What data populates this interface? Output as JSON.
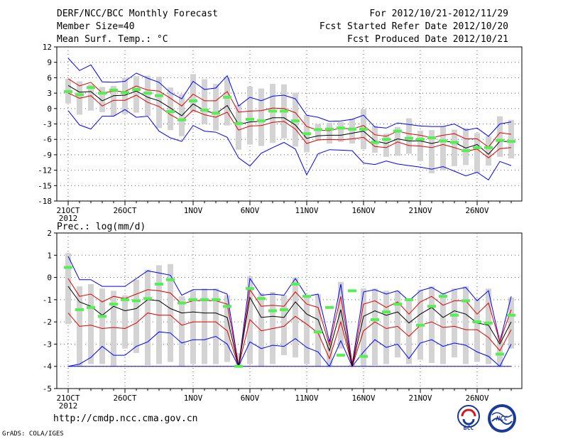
{
  "header": {
    "title": "DERF/NCC/BCC Monthly Forecast",
    "member_size": "Member Size=40",
    "variable": "Mean Surf. Temp.: °C",
    "period": "For 2012/10/21-2012/11/29",
    "fcst_start": "Fcst Started Refer Date 2012/10/20",
    "fcst_produced": "Fcst Produced Date 2012/10/21"
  },
  "footer": {
    "url": "http://cmdp.ncc.cma.gov.cn",
    "credit": "GrADS: COLA/IGES",
    "logo_bcc": "BCC",
    "logo_ncc": "NCC"
  },
  "colors": {
    "max_line": "#0000ff",
    "quartile_line": "#dd0000",
    "median_line": "#000000",
    "box": "#d3d3d3",
    "marker": "#55ee55",
    "grid": "#666666"
  },
  "chart_data": [
    {
      "type": "box-spread",
      "title": "Mean Surf. Temp.: °C",
      "xlabel": "",
      "ylabel": "",
      "ylim": [
        -18,
        12
      ],
      "yticks": [
        -18,
        -15,
        -12,
        -9,
        -6,
        -3,
        0,
        3,
        6,
        9,
        12
      ],
      "x_tick_labels": [
        {
          "day": 0,
          "label": "21OCT"
        },
        {
          "day": 5,
          "label": "26OCT"
        },
        {
          "day": 11,
          "label": "1NOV"
        },
        {
          "day": 16,
          "label": "6NOV"
        },
        {
          "day": 21,
          "label": "11NOV"
        },
        {
          "day": 26,
          "label": "16NOV"
        },
        {
          "day": 31,
          "label": "21NOV"
        },
        {
          "day": 36,
          "label": "26NOV"
        }
      ],
      "year_label": "2012",
      "max": [
        9.8,
        7.4,
        8.5,
        5.2,
        5.1,
        5.3,
        6.9,
        5.9,
        5.1,
        3.1,
        1.9,
        5.3,
        3.7,
        4.0,
        6.4,
        0.5,
        2.2,
        1.5,
        2.4,
        2.6,
        1.9,
        -1.3,
        -1.7,
        -2.5,
        -2.4,
        -2.1,
        -1.3,
        -3.6,
        -3.8,
        -2.8,
        -3.1,
        -3.4,
        -3.5,
        -3.5,
        -3.0,
        -4.2,
        -3.8,
        -5.4,
        -3.0,
        -2.6
      ],
      "q3": [
        5.8,
        4.4,
        5.1,
        3.0,
        3.4,
        3.3,
        4.4,
        3.6,
        3.4,
        2.0,
        0.5,
        2.8,
        1.5,
        1.5,
        3.3,
        -0.7,
        -0.5,
        -0.4,
        0.1,
        0.0,
        -0.8,
        -3.5,
        -4.2,
        -4.3,
        -3.8,
        -4.0,
        -3.3,
        -5.1,
        -5.4,
        -4.4,
        -4.9,
        -5.2,
        -5.7,
        -5.2,
        -4.9,
        -5.9,
        -5.9,
        -7.5,
        -4.7,
        -5.0
      ],
      "median": [
        4.5,
        3.2,
        3.3,
        1.5,
        2.5,
        2.6,
        3.4,
        2.2,
        1.5,
        0.1,
        -1.4,
        0.9,
        -0.4,
        -1.0,
        0.6,
        -3.1,
        -2.6,
        -2.5,
        -1.8,
        -1.8,
        -3.2,
        -5.8,
        -5.3,
        -5.2,
        -5.2,
        -4.8,
        -4.4,
        -6.3,
        -6.8,
        -5.9,
        -6.3,
        -6.3,
        -6.8,
        -6.3,
        -6.6,
        -7.7,
        -7.0,
        -8.9,
        -6.4,
        -6.4
      ],
      "q1": [
        3.0,
        2.0,
        2.5,
        0.5,
        1.6,
        1.6,
        2.6,
        1.2,
        0.4,
        -1.2,
        -2.4,
        -0.3,
        -1.2,
        -1.7,
        -0.7,
        -4.2,
        -3.4,
        -3.3,
        -2.7,
        -2.5,
        -4.0,
        -6.8,
        -6.1,
        -6.0,
        -6.1,
        -5.9,
        -5.6,
        -7.4,
        -7.6,
        -6.5,
        -7.2,
        -7.3,
        -7.6,
        -7.0,
        -7.6,
        -8.3,
        -7.9,
        -9.6,
        -7.8,
        -7.6
      ],
      "min": [
        -0.4,
        -3.2,
        -4.0,
        -1.5,
        -1.5,
        -0.2,
        -1.7,
        -1.5,
        -4.4,
        -5.7,
        -6.4,
        -3.3,
        -4.4,
        -4.6,
        -5.6,
        -9.6,
        -11.2,
        -8.7,
        -7.6,
        -6.6,
        -7.9,
        -12.9,
        -8.8,
        -8.0,
        -8.1,
        -8.2,
        -10.6,
        -10.9,
        -10.2,
        -10.8,
        -11.1,
        -11.4,
        -11.8,
        -11.3,
        -12.2,
        -13.1,
        -12.4,
        -13.9,
        -10.3,
        -11.1
      ],
      "box_high": [
        5.8,
        5.3,
        4.7,
        4.2,
        4.4,
        6.0,
        6.3,
        6.4,
        6.2,
        4.1,
        2.8,
        6.7,
        5.7,
        4.8,
        6.1,
        0.7,
        4.3,
        3.9,
        4.8,
        4.7,
        3.1,
        -1.3,
        -3.0,
        -2.8,
        -2.6,
        -2.0,
        -0.1,
        -3.3,
        -4.9,
        -3.6,
        -1.9,
        -4.3,
        -4.2,
        -3.5,
        -4.1,
        -3.8,
        -4.8,
        -5.4,
        -1.5,
        -2.2
      ],
      "box_low": [
        1.0,
        -1.2,
        -0.4,
        -0.7,
        -1.4,
        -1.1,
        -0.8,
        -1.4,
        -3.8,
        -4.2,
        -5.4,
        -0.8,
        -3.0,
        -4.3,
        -3.3,
        -8.0,
        -7.0,
        -7.3,
        -6.7,
        -5.8,
        -7.4,
        -8.5,
        -6.3,
        -6.8,
        -6.5,
        -6.8,
        -7.9,
        -8.6,
        -9.4,
        -9.2,
        -8.8,
        -10.2,
        -12.6,
        -12.0,
        -11.2,
        -11.0,
        -12.6,
        -11.1,
        -9.4,
        -9.7
      ],
      "observed": [
        3.3,
        2.7,
        4.1,
        3.0,
        3.6,
        3.1,
        3.7,
        3.0,
        2.5,
        -0.6,
        -2.2,
        1.5,
        -0.3,
        -0.9,
        2.2,
        -2.9,
        -2.1,
        -2.4,
        -0.5,
        -0.5,
        -2.4,
        -4.9,
        -4.1,
        -4.0,
        -3.8,
        -4.0,
        -4.0,
        -6.6,
        -6.0,
        -4.4,
        -5.8,
        -6.0,
        -5.7,
        -6.3,
        -6.6,
        -8.2,
        -7.6,
        -7.6,
        -6.2,
        -6.4
      ]
    },
    {
      "type": "box-spread",
      "title": "Prec.: log(mm/d)",
      "xlabel": "",
      "ylabel": "",
      "ylim": [
        -5,
        2
      ],
      "yticks": [
        -5,
        -4,
        -3,
        -2,
        -1,
        0,
        1,
        2
      ],
      "x_tick_labels": [
        {
          "day": 0,
          "label": "21OCT"
        },
        {
          "day": 5,
          "label": "26OCT"
        },
        {
          "day": 11,
          "label": "1NOV"
        },
        {
          "day": 16,
          "label": "6NOV"
        },
        {
          "day": 21,
          "label": "11NOV"
        },
        {
          "day": 26,
          "label": "16NOV"
        },
        {
          "day": 31,
          "label": "21NOV"
        },
        {
          "day": 36,
          "label": "26NOV"
        }
      ],
      "year_label": "2012",
      "max": [
        0.95,
        -0.1,
        -0.1,
        -0.4,
        -0.4,
        -0.4,
        -0.05,
        0.3,
        0.2,
        0.1,
        -0.8,
        -0.55,
        -0.55,
        -0.55,
        -0.75,
        -4.0,
        -0.05,
        -0.8,
        -0.75,
        -0.8,
        -0.05,
        -0.85,
        -0.75,
        -2.9,
        -0.3,
        -3.9,
        -0.65,
        -0.55,
        -0.75,
        -0.6,
        -1.05,
        -0.6,
        -0.45,
        -0.75,
        -0.55,
        -0.45,
        -1.05,
        -0.6,
        -2.9,
        -0.85
      ],
      "q3": [
        -0.05,
        -0.85,
        -0.75,
        -1.1,
        -0.85,
        -0.95,
        -0.75,
        -0.55,
        -0.6,
        -0.7,
        -1.2,
        -1.05,
        -1.05,
        -1.05,
        -1.2,
        -4.0,
        -0.55,
        -1.3,
        -1.25,
        -1.3,
        -0.65,
        -1.2,
        -1.35,
        -3.05,
        -0.85,
        -3.95,
        -1.2,
        -1.05,
        -1.35,
        -1.1,
        -1.65,
        -1.1,
        -0.85,
        -1.25,
        -1.05,
        -1.05,
        -1.65,
        -1.15,
        -2.9,
        -1.45
      ],
      "median": [
        -0.4,
        -1.1,
        -1.3,
        -1.7,
        -1.3,
        -1.5,
        -1.4,
        -1.0,
        -1.05,
        -1.4,
        -1.6,
        -1.55,
        -1.6,
        -1.6,
        -1.8,
        -4.0,
        -0.9,
        -1.8,
        -1.75,
        -1.8,
        -1.1,
        -1.65,
        -1.9,
        -3.3,
        -1.45,
        -4.0,
        -1.75,
        -1.5,
        -1.7,
        -1.55,
        -2.05,
        -1.65,
        -1.35,
        -1.8,
        -1.5,
        -1.65,
        -2.05,
        -2.15,
        -3.0,
        -2.0
      ],
      "q1": [
        -1.6,
        -2.2,
        -2.15,
        -2.3,
        -2.25,
        -2.3,
        -2.05,
        -1.6,
        -1.7,
        -1.7,
        -2.15,
        -2.0,
        -2.0,
        -2.0,
        -2.4,
        -4.0,
        -1.9,
        -2.4,
        -2.3,
        -2.2,
        -1.75,
        -2.1,
        -2.5,
        -3.65,
        -2.0,
        -4.0,
        -2.4,
        -2.0,
        -2.3,
        -2.2,
        -2.65,
        -2.15,
        -2.0,
        -2.25,
        -2.2,
        -2.35,
        -2.35,
        -2.7,
        -3.3,
        -2.35
      ],
      "min": [
        -4.0,
        -3.9,
        -3.6,
        -3.1,
        -3.5,
        -3.5,
        -3.1,
        -2.9,
        -2.45,
        -2.5,
        -2.95,
        -2.8,
        -2.8,
        -2.65,
        -3.0,
        -4.0,
        -2.9,
        -3.2,
        -3.05,
        -3.1,
        -2.75,
        -3.15,
        -3.35,
        -4.0,
        -2.85,
        -4.0,
        -3.35,
        -2.8,
        -3.15,
        -3.0,
        -3.65,
        -2.95,
        -2.8,
        -3.1,
        -2.95,
        -3.05,
        -3.35,
        -3.55,
        -4.0,
        -3.0
      ],
      "floor": -4.0,
      "box_high": [
        1.1,
        -0.4,
        -0.3,
        -0.5,
        -0.6,
        -0.8,
        -0.1,
        0.35,
        0.55,
        0.6,
        -0.85,
        -0.6,
        -0.5,
        -0.5,
        -0.8,
        -3.4,
        0.05,
        -0.7,
        -0.65,
        -0.8,
        -0.0,
        -0.8,
        -0.75,
        -2.8,
        -0.2,
        -3.9,
        -0.5,
        -0.5,
        -0.6,
        -0.6,
        -1.0,
        -0.55,
        -0.4,
        -0.7,
        -0.5,
        -0.4,
        -0.95,
        -0.5,
        -2.6,
        -0.9
      ],
      "box_low": [
        -2.1,
        -4.0,
        -3.9,
        -3.9,
        -4.0,
        -3.2,
        -3.4,
        -3.95,
        -3.9,
        -3.8,
        -4.0,
        -3.9,
        -3.9,
        -3.9,
        -3.8,
        -4.0,
        -3.9,
        -4.0,
        -3.9,
        -3.5,
        -3.6,
        -3.9,
        -4.0,
        -4.0,
        -3.2,
        -4.0,
        -4.0,
        -3.95,
        -3.9,
        -3.6,
        -3.9,
        -3.7,
        -3.85,
        -3.9,
        -3.6,
        -3.9,
        -3.8,
        -3.9,
        -4.0,
        -3.2
      ],
      "observed": [
        0.45,
        -1.45,
        -1.35,
        -1.75,
        -1.2,
        -1.0,
        -1.05,
        -0.95,
        -0.3,
        -0.1,
        -1.15,
        -1.0,
        -1.0,
        -1.0,
        -1.3,
        -4.0,
        -0.5,
        -0.95,
        -1.5,
        -1.45,
        -0.3,
        -0.85,
        -2.45,
        -1.35,
        -3.5,
        -0.6,
        -3.55,
        -1.9,
        -1.55,
        -1.2,
        -1.0,
        -2.15,
        -1.3,
        -0.85,
        -1.7,
        -1.05,
        -2.0,
        -2.05,
        -3.45,
        -1.7
      ]
    }
  ]
}
